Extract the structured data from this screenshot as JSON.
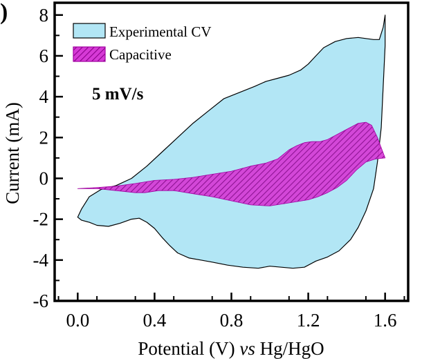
{
  "panel_label": ")",
  "chart_data": {
    "type": "area",
    "xlabel": {
      "prefix": "Potential (V) ",
      "italic": "vs",
      "suffix": " Hg/HgO"
    },
    "ylabel": "Current (mA)",
    "xlim": [
      -0.12,
      1.72
    ],
    "ylim": [
      -6,
      8.6
    ],
    "xticks": [
      "0.0",
      "0.4",
      "0.8",
      "1.2",
      "1.6"
    ],
    "xtick_values": [
      0.0,
      0.4,
      0.8,
      1.2,
      1.6
    ],
    "yticks": [
      "-6",
      "-4",
      "-2",
      "0",
      "2",
      "4",
      "6",
      "8"
    ],
    "ytick_values": [
      -6,
      -4,
      -2,
      0,
      2,
      4,
      6,
      8
    ],
    "annotation": "5 mV/s",
    "legend_position": "top-left",
    "series": [
      {
        "name": "Experimental CV",
        "color": "#b2e6f5",
        "stroke": "#000000",
        "fill": "solid",
        "points": [
          [
            0.0,
            -1.9
          ],
          [
            0.02,
            -1.5
          ],
          [
            0.06,
            -0.9
          ],
          [
            0.12,
            -0.55
          ],
          [
            0.2,
            -0.35
          ],
          [
            0.28,
            0.0
          ],
          [
            0.36,
            0.6
          ],
          [
            0.44,
            1.3
          ],
          [
            0.52,
            2.0
          ],
          [
            0.6,
            2.7
          ],
          [
            0.68,
            3.3
          ],
          [
            0.76,
            3.9
          ],
          [
            0.84,
            4.2
          ],
          [
            0.92,
            4.5
          ],
          [
            0.98,
            4.75
          ],
          [
            1.04,
            4.9
          ],
          [
            1.1,
            5.05
          ],
          [
            1.16,
            5.3
          ],
          [
            1.2,
            5.6
          ],
          [
            1.24,
            6.0
          ],
          [
            1.28,
            6.4
          ],
          [
            1.34,
            6.7
          ],
          [
            1.4,
            6.85
          ],
          [
            1.46,
            6.9
          ],
          [
            1.5,
            6.85
          ],
          [
            1.54,
            6.8
          ],
          [
            1.57,
            6.8
          ],
          [
            1.59,
            7.4
          ],
          [
            1.6,
            8.0
          ],
          [
            1.6,
            6.5
          ],
          [
            1.59,
            4.5
          ],
          [
            1.58,
            2.5
          ],
          [
            1.56,
            0.8
          ],
          [
            1.54,
            -0.5
          ],
          [
            1.5,
            -1.6
          ],
          [
            1.46,
            -2.4
          ],
          [
            1.42,
            -3.0
          ],
          [
            1.36,
            -3.55
          ],
          [
            1.3,
            -3.85
          ],
          [
            1.24,
            -4.05
          ],
          [
            1.18,
            -4.35
          ],
          [
            1.12,
            -4.4
          ],
          [
            1.06,
            -4.35
          ],
          [
            1.0,
            -4.3
          ],
          [
            0.94,
            -4.4
          ],
          [
            0.86,
            -4.35
          ],
          [
            0.78,
            -4.25
          ],
          [
            0.7,
            -4.1
          ],
          [
            0.64,
            -4.0
          ],
          [
            0.58,
            -3.9
          ],
          [
            0.52,
            -3.65
          ],
          [
            0.48,
            -3.3
          ],
          [
            0.44,
            -2.9
          ],
          [
            0.4,
            -2.45
          ],
          [
            0.36,
            -2.15
          ],
          [
            0.32,
            -1.95
          ],
          [
            0.28,
            -2.0
          ],
          [
            0.22,
            -2.2
          ],
          [
            0.16,
            -2.35
          ],
          [
            0.1,
            -2.3
          ],
          [
            0.06,
            -2.15
          ],
          [
            0.02,
            -2.05
          ],
          [
            0.0,
            -1.9
          ]
        ]
      },
      {
        "name": "Capacitive",
        "color": "#d63ad6",
        "stroke": "#a000a0",
        "fill": "hatched",
        "points": [
          [
            0.0,
            -0.5
          ],
          [
            0.1,
            -0.45
          ],
          [
            0.2,
            -0.38
          ],
          [
            0.3,
            -0.25
          ],
          [
            0.4,
            -0.1
          ],
          [
            0.5,
            -0.05
          ],
          [
            0.6,
            0.05
          ],
          [
            0.7,
            0.2
          ],
          [
            0.8,
            0.35
          ],
          [
            0.9,
            0.6
          ],
          [
            0.98,
            0.75
          ],
          [
            1.04,
            0.95
          ],
          [
            1.1,
            1.4
          ],
          [
            1.14,
            1.6
          ],
          [
            1.18,
            1.75
          ],
          [
            1.22,
            1.8
          ],
          [
            1.26,
            1.8
          ],
          [
            1.3,
            1.9
          ],
          [
            1.36,
            2.2
          ],
          [
            1.42,
            2.5
          ],
          [
            1.46,
            2.7
          ],
          [
            1.5,
            2.75
          ],
          [
            1.53,
            2.6
          ],
          [
            1.56,
            2.0
          ],
          [
            1.58,
            1.5
          ],
          [
            1.6,
            1.0
          ],
          [
            1.55,
            0.95
          ],
          [
            1.5,
            0.8
          ],
          [
            1.45,
            0.4
          ],
          [
            1.4,
            -0.1
          ],
          [
            1.35,
            -0.45
          ],
          [
            1.3,
            -0.7
          ],
          [
            1.25,
            -0.9
          ],
          [
            1.2,
            -1.05
          ],
          [
            1.1,
            -1.2
          ],
          [
            1.0,
            -1.35
          ],
          [
            0.9,
            -1.3
          ],
          [
            0.8,
            -1.1
          ],
          [
            0.7,
            -0.9
          ],
          [
            0.6,
            -0.75
          ],
          [
            0.5,
            -0.6
          ],
          [
            0.42,
            -0.6
          ],
          [
            0.35,
            -0.7
          ],
          [
            0.3,
            -0.7
          ],
          [
            0.2,
            -0.6
          ],
          [
            0.1,
            -0.5
          ],
          [
            0.0,
            -0.5
          ]
        ]
      }
    ]
  }
}
